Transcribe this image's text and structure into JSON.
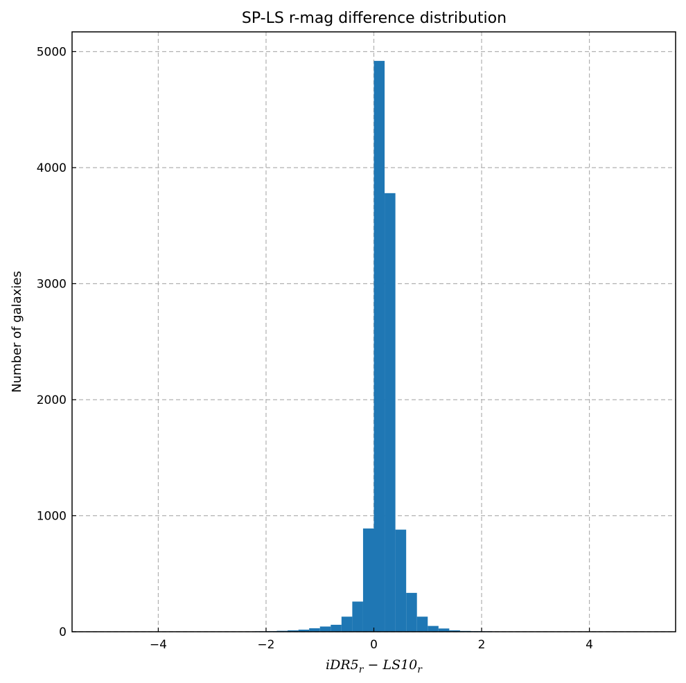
{
  "chart_data": {
    "type": "bar",
    "title": "SP-LS r-mag difference distribution",
    "ylabel": "Number of galaxies",
    "xlabel": {
      "text_parts": [
        {
          "text": "iDR5",
          "role": "main"
        },
        {
          "text": "r",
          "role": "sub"
        },
        {
          "text": " − ",
          "role": "op"
        },
        {
          "text": "LS10",
          "role": "main"
        },
        {
          "text": "r",
          "role": "sub"
        }
      ]
    },
    "xlim": [
      -5.6,
      5.6
    ],
    "ylim": [
      0,
      5170
    ],
    "xticks": [
      -4,
      -2,
      0,
      2,
      4
    ],
    "xtick_labels": [
      "−4",
      "−2",
      "0",
      "2",
      "4"
    ],
    "yticks": [
      0,
      1000,
      2000,
      3000,
      4000,
      5000
    ],
    "ytick_labels": [
      "0",
      "1000",
      "2000",
      "3000",
      "4000",
      "5000"
    ],
    "grid": true,
    "bar_color": "#1f77b4",
    "bin_edges": [
      -5.0,
      -4.8,
      -4.6,
      -4.4,
      -4.2,
      -4.0,
      -3.8,
      -3.6,
      -3.4,
      -3.2,
      -3.0,
      -2.8,
      -2.6,
      -2.4,
      -2.2,
      -2.0,
      -1.8,
      -1.6,
      -1.4,
      -1.2,
      -1.0,
      -0.8,
      -0.6,
      -0.4,
      -0.2,
      0.0,
      0.2,
      0.4,
      0.6,
      0.8,
      1.0,
      1.2,
      1.4,
      1.6,
      1.8,
      2.0,
      2.2,
      2.4,
      2.6,
      2.8,
      3.0,
      3.2,
      3.4,
      3.6,
      3.8,
      4.0,
      4.2,
      4.4,
      4.6,
      4.8,
      5.0
    ],
    "values": [
      1,
      1,
      1,
      1,
      1,
      2,
      1,
      1,
      2,
      1,
      2,
      3,
      2,
      3,
      4,
      5,
      8,
      12,
      18,
      30,
      45,
      60,
      130,
      260,
      890,
      4920,
      3780,
      880,
      335,
      130,
      50,
      28,
      12,
      7,
      5,
      4,
      3,
      2,
      2,
      2,
      1,
      1,
      1,
      1,
      1,
      1,
      1,
      1,
      1,
      1
    ]
  }
}
